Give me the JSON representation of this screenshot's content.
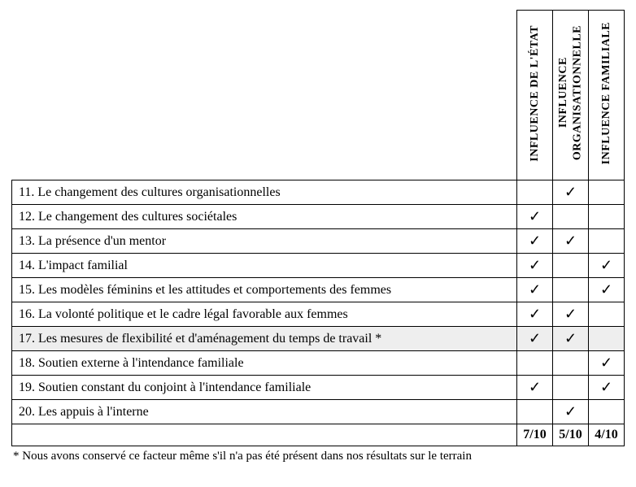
{
  "columns": [
    "INFLUENCE DE L'ÉTAT",
    "INFLUENCE\nORGANISATIONNELLE",
    "INFLUENCE FAMILIALE"
  ],
  "check_char": "✓",
  "rows": [
    {
      "label": "11. Le changement des cultures organisationnelles",
      "marks": [
        false,
        true,
        false
      ],
      "shaded": false
    },
    {
      "label": "12. Le changement des cultures sociétales",
      "marks": [
        true,
        false,
        false
      ],
      "shaded": false
    },
    {
      "label": "13. La présence d'un mentor",
      "marks": [
        true,
        true,
        false
      ],
      "shaded": false
    },
    {
      "label": "14. L'impact familial",
      "marks": [
        true,
        false,
        true
      ],
      "shaded": false
    },
    {
      "label": "15. Les modèles féminins et les attitudes et comportements des femmes",
      "marks": [
        true,
        false,
        true
      ],
      "shaded": false
    },
    {
      "label": "16. La volonté politique et le cadre légal favorable aux femmes",
      "marks": [
        true,
        true,
        false
      ],
      "shaded": false
    },
    {
      "label": "17. Les mesures de flexibilité et d'aménagement du temps de travail *",
      "marks": [
        true,
        true,
        false
      ],
      "shaded": true
    },
    {
      "label": "18. Soutien externe à l'intendance familiale",
      "marks": [
        false,
        false,
        true
      ],
      "shaded": false
    },
    {
      "label": "19. Soutien constant du conjoint à l'intendance familiale",
      "marks": [
        true,
        false,
        true
      ],
      "shaded": false
    },
    {
      "label": "20. Les appuis à l'interne",
      "marks": [
        false,
        true,
        false
      ],
      "shaded": false
    }
  ],
  "totals": [
    "7/10",
    "5/10",
    "4/10"
  ],
  "footnote": "* Nous avons conservé ce facteur même s'il n'a pas été présent dans nos résultats sur le terrain"
}
